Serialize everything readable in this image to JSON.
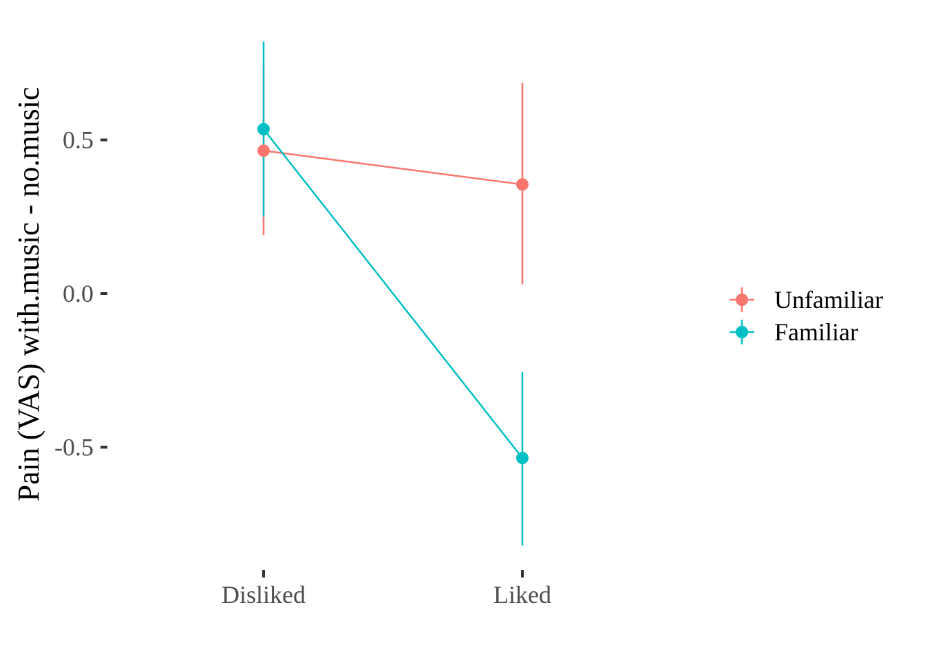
{
  "chart_data": {
    "type": "line",
    "title": "",
    "xlabel": "",
    "ylabel": "Pain (VAS) with.music - no.music",
    "categories": [
      "Disliked",
      "Liked"
    ],
    "yticks": [
      -0.5,
      0.0,
      0.5
    ],
    "ytick_labels": [
      "-0.5",
      "0.0",
      "0.5"
    ],
    "ylim": [
      -0.88,
      0.84
    ],
    "grid": false,
    "legend_position": "right",
    "series": [
      {
        "name": "Unfamiliar",
        "color": "#F8766D",
        "values": [
          0.465,
          0.355
        ],
        "lower": [
          0.19,
          0.03
        ],
        "upper": [
          0.74,
          0.685
        ]
      },
      {
        "name": "Familiar",
        "color": "#00BFC4",
        "values": [
          0.535,
          -0.535
        ],
        "lower": [
          0.25,
          -0.82
        ],
        "upper": [
          0.82,
          -0.255
        ]
      }
    ]
  }
}
